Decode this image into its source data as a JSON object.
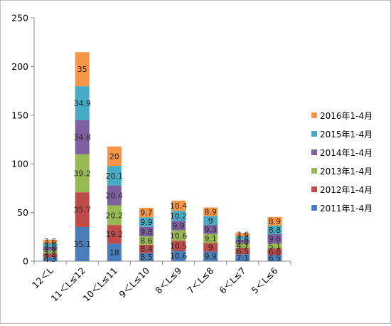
{
  "chart_data": {
    "type": "bar",
    "stacked": true,
    "categories": [
      "12＜L",
      "11＜L≤12",
      "10＜L≤11",
      "9＜L≤10",
      "8＜L≤9",
      "7＜L≤8",
      "6＜L≤7",
      "5＜L≤6"
    ],
    "ylim": [
      0,
      250
    ],
    "yticks": [
      0,
      50,
      100,
      150,
      200,
      250
    ],
    "grid": false,
    "legend_position": "right",
    "series": [
      {
        "name": "2011年1-4月",
        "color": "#4a7ebb",
        "values": [
          4.3,
          35.1,
          18,
          8.5,
          10.6,
          9.9,
          7.1,
          6.5
        ],
        "labels": [
          "4.3",
          "35.1",
          "18",
          "8.5",
          "10.6",
          "9.9",
          "7.1",
          "6.5"
        ]
      },
      {
        "name": "2012年1-4月",
        "color": "#be4b48",
        "values": [
          3.4,
          35.7,
          19.2,
          8.4,
          10.5,
          9,
          6.5,
          6.6
        ],
        "labels": [
          "3.4",
          "35.7",
          "19.2",
          "8.4",
          "10.5",
          "9",
          "6.5",
          "6.6"
        ]
      },
      {
        "name": "2013年1-4月",
        "color": "#98b954",
        "values": [
          3.4,
          39.2,
          20.2,
          8.6,
          10.6,
          9.1,
          4.7,
          5.1
        ],
        "labels": [
          "3.4",
          "39.2",
          "20.2",
          "8.6",
          "10.6",
          "9.1",
          "4.7",
          "5.1"
        ]
      },
      {
        "name": "2014年1-4月",
        "color": "#7d60a0",
        "values": [
          3.6,
          34.8,
          20.4,
          9.8,
          9.9,
          9.3,
          3.8,
          9.6
        ],
        "labels": [
          "3.6",
          "34.8",
          "20.4",
          "9.8",
          "9.9",
          "9.3",
          "3.8",
          "9.6"
        ]
      },
      {
        "name": "2015年1-4月",
        "color": "#46aac5",
        "values": [
          3.8,
          34.9,
          20.1,
          9.9,
          10.2,
          9,
          3.4,
          8.8
        ],
        "labels": [
          "3.8",
          "34.9",
          "20.1",
          "9.9",
          "10.2",
          "9",
          "3.4",
          "8.8"
        ]
      },
      {
        "name": "2016年1-4月",
        "color": "#f79646",
        "values": [
          3.6,
          35,
          20,
          9.7,
          10.4,
          8.9,
          3.6,
          8.9
        ],
        "labels": [
          "3.6",
          "35",
          "20",
          "9.7",
          "10.4",
          "8.9",
          "3.6",
          "8.9"
        ]
      }
    ]
  }
}
